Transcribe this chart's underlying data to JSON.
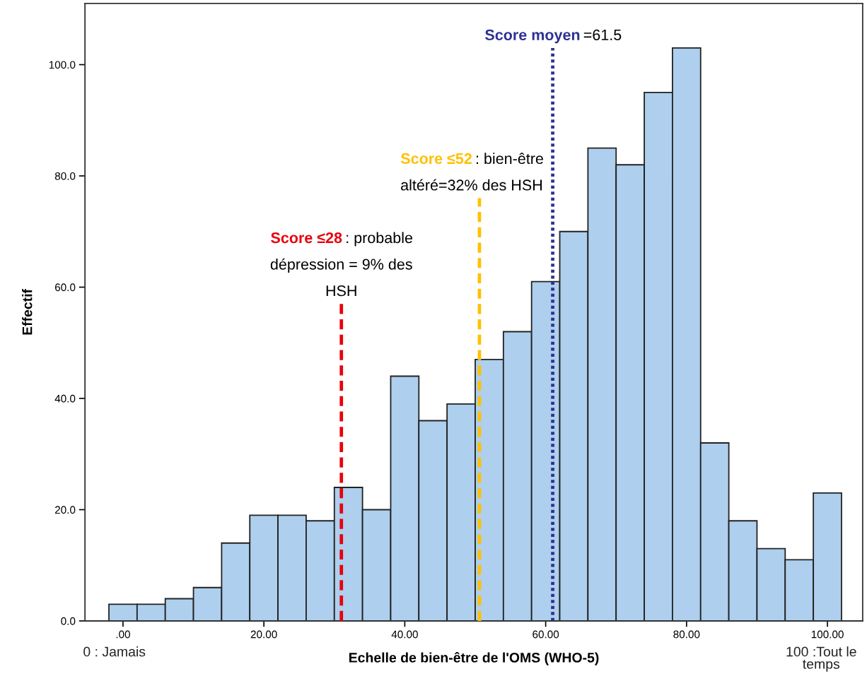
{
  "chart_data": {
    "type": "histogram",
    "xlabel": "Echelle de bien-être de l'OMS (WHO-5)",
    "ylabel": "Effectif",
    "bins": [
      -2,
      2,
      6,
      10,
      14,
      18,
      22,
      26,
      30,
      34,
      38,
      42,
      46,
      50,
      54,
      58,
      62,
      66,
      70,
      74,
      78,
      82,
      86,
      90,
      94,
      98,
      102
    ],
    "values": [
      3,
      3,
      4,
      6,
      14,
      19,
      19,
      18,
      24,
      20,
      44,
      36,
      39,
      47,
      52,
      61,
      70,
      85,
      82,
      95,
      103,
      32,
      18,
      13,
      11,
      23
    ],
    "color": "#aecfed",
    "xlim": [
      -5.4,
      105
    ],
    "ylim": [
      0,
      111
    ],
    "xticks": [
      {
        "value": 0,
        "label": ".00"
      },
      {
        "value": 20,
        "label": "20.00"
      },
      {
        "value": 40,
        "label": "40.00"
      },
      {
        "value": 60,
        "label": "60.00"
      },
      {
        "value": 80,
        "label": "80.00"
      },
      {
        "value": 100,
        "label": "100.00"
      }
    ],
    "yticks": [
      {
        "value": 0,
        "label": "0.0"
      },
      {
        "value": 20,
        "label": "20.0"
      },
      {
        "value": 40,
        "label": "40.0"
      },
      {
        "value": 60,
        "label": "60.0"
      },
      {
        "value": 80,
        "label": "80.0"
      },
      {
        "value": 100,
        "label": "100.0"
      }
    ],
    "grid": false,
    "ref_lines": [
      {
        "axis": "x",
        "value": 31,
        "label": "Score ≤28",
        "color": "#e8000b",
        "line_style": "dashed"
      },
      {
        "axis": "x",
        "value": 50.6,
        "label": "Score ≤52",
        "color": "#ffc000",
        "line_style": "dashed"
      },
      {
        "axis": "x",
        "value": 61,
        "label": "Score moyen",
        "color": "#2e3192",
        "line_style": "dotted"
      }
    ],
    "annotations": [
      {
        "text": ": probable\ndépression = 9% des\nHSH",
        "x": 31,
        "y": 57
      },
      {
        "text": ": bien-être\naltéré=32% des HSH",
        "x": 50.6,
        "y": 76
      },
      {
        "text": "=61.5",
        "x": 61,
        "y": 103
      },
      "0 : Jamais",
      "100 :Tout le\ntemps"
    ]
  }
}
